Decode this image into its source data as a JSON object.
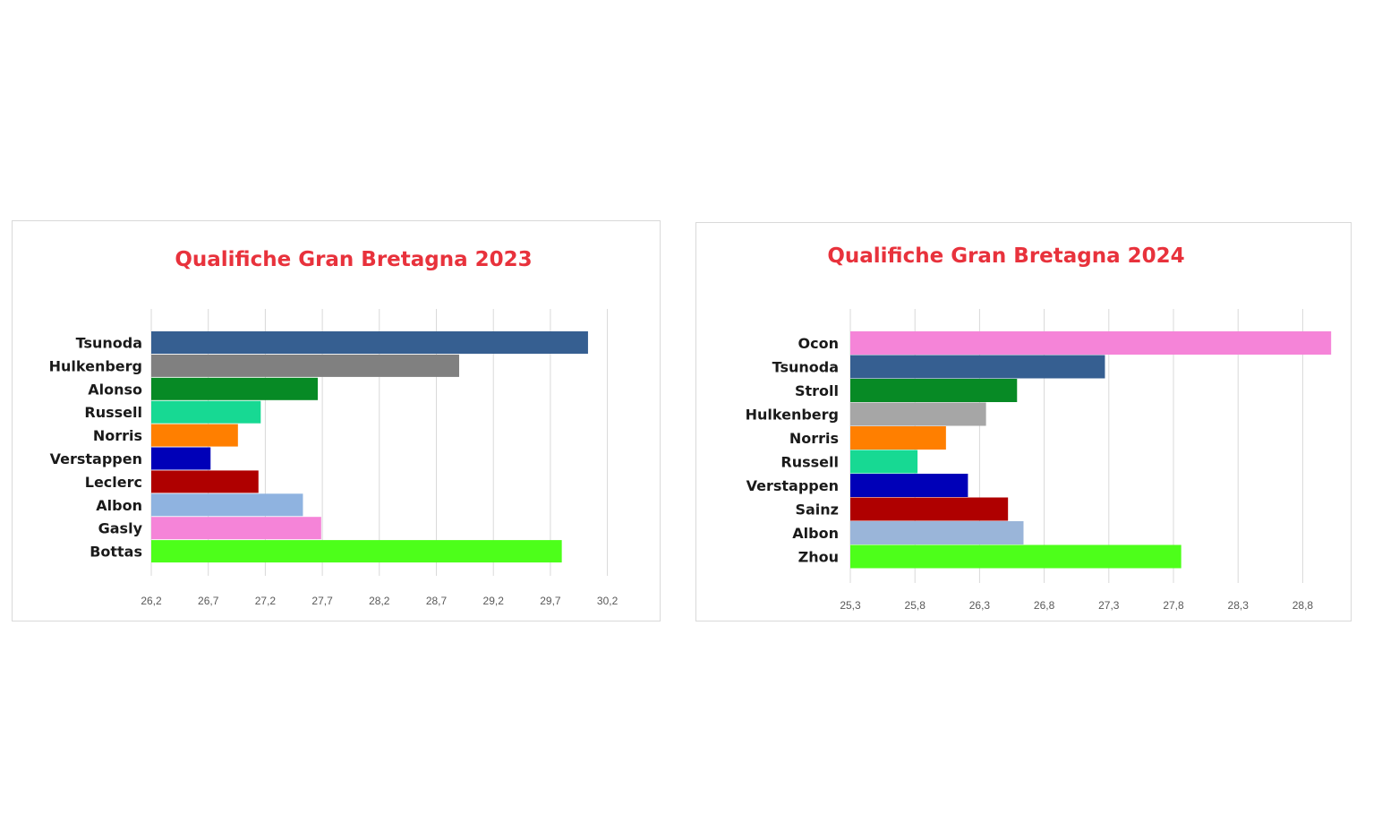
{
  "chart_data": [
    {
      "type": "bar",
      "orientation": "horizontal",
      "title": "Qualifiche Gran Bretagna 2023",
      "categories": [
        "Tsunoda",
        "Hulkenberg",
        "Alonso",
        "Russell",
        "Norris",
        "Verstappen",
        "Leclerc",
        "Albon",
        "Gasly",
        "Bottas"
      ],
      "values": [
        30.03,
        28.9,
        27.66,
        27.16,
        26.96,
        26.72,
        27.14,
        27.53,
        27.69,
        29.8
      ],
      "colors": [
        "#365f91",
        "#808080",
        "#078a25",
        "#17d993",
        "#ff7f00",
        "#0000b8",
        "#af0000",
        "#8fb3e0",
        "#f584d8",
        "#4dff1a"
      ],
      "xlim": [
        26.2,
        30.2
      ],
      "ticks": [
        "26,2",
        "26,7",
        "27,2",
        "27,7",
        "28,2",
        "28,7",
        "29,2",
        "29,7",
        "30,2"
      ],
      "grid": true,
      "legend": "none"
    },
    {
      "type": "bar",
      "orientation": "horizontal",
      "title": "Qualifiche Gran Bretagna 2024",
      "categories": [
        "Ocon",
        "Tsunoda",
        "Stroll",
        "Hulkenberg",
        "Norris",
        "Russell",
        "Verstappen",
        "Sainz",
        "Albon",
        "Zhou"
      ],
      "values": [
        29.02,
        27.27,
        26.59,
        26.35,
        26.04,
        25.82,
        26.21,
        26.52,
        26.64,
        27.86
      ],
      "colors": [
        "#f584d8",
        "#365f91",
        "#078a25",
        "#a6a6a6",
        "#ff7f00",
        "#17d993",
        "#0000b8",
        "#af0000",
        "#9ab5d9",
        "#4dff1a"
      ],
      "xlim": [
        25.3,
        29.0
      ],
      "ticks": [
        "25,3",
        "25,8",
        "26,3",
        "26,8",
        "27,3",
        "27,8",
        "28,3",
        "28,8"
      ],
      "grid": true,
      "legend": "none"
    }
  ]
}
